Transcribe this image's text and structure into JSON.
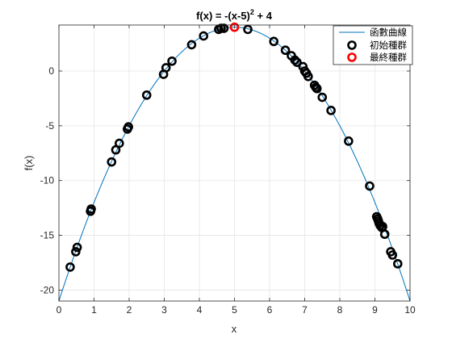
{
  "chart_data": {
    "type": "scatter",
    "title": "f(x) = -(x-5)",
    "title_superscript": "2",
    "title_suffix": " + 4",
    "xlabel": "x",
    "ylabel": "f(x)",
    "xlim": [
      0,
      10
    ],
    "ylim": [
      -21,
      4.2
    ],
    "xticks": [
      0,
      1,
      2,
      3,
      4,
      5,
      6,
      7,
      8,
      9,
      10
    ],
    "xtick_labels": [
      "0",
      "1",
      "2",
      "3",
      "4",
      "5",
      "6",
      "7",
      "8",
      "9",
      "10"
    ],
    "yticks": [
      -20,
      -15,
      -10,
      -5,
      0
    ],
    "ytick_labels": [
      "-20",
      "-15",
      "-10",
      "-5",
      "0"
    ],
    "grid": true,
    "legend_position": "top-right",
    "colors": {
      "curve": "#0072BD",
      "initial": "#000000",
      "final": "#FF0000",
      "grid": "#E5E5E5",
      "axes": "#262626"
    },
    "series": [
      {
        "name": "函數曲線",
        "kind": "line",
        "function": "-(x-5)^2+4",
        "x_range": [
          0,
          10
        ]
      },
      {
        "name": "初始種群",
        "kind": "marker",
        "x": [
          0.32,
          0.48,
          0.52,
          0.9,
          0.92,
          1.5,
          1.62,
          1.72,
          1.95,
          1.98,
          2.5,
          2.98,
          3.05,
          3.22,
          3.78,
          4.12,
          4.55,
          4.62,
          4.7,
          5.38,
          6.12,
          6.45,
          6.62,
          6.72,
          6.78,
          6.95,
          7.0,
          7.05,
          7.1,
          7.28,
          7.32,
          7.35,
          7.5,
          7.75,
          8.25,
          8.85,
          9.05,
          9.08,
          9.1,
          9.12,
          9.15,
          9.2,
          9.22,
          9.28,
          9.45,
          9.5,
          9.65
        ],
        "y": [
          -17.9,
          -16.5,
          -16.1,
          -12.8,
          -12.6,
          -8.3,
          -7.2,
          -6.6,
          -5.3,
          -5.1,
          -2.2,
          -0.3,
          0.3,
          0.9,
          2.4,
          3.2,
          3.8,
          3.9,
          3.9,
          3.8,
          2.7,
          1.9,
          1.4,
          1.0,
          0.8,
          0.4,
          0.0,
          -0.2,
          -0.5,
          -1.3,
          -1.5,
          -1.6,
          -2.4,
          -3.6,
          -6.4,
          -10.5,
          -13.3,
          -13.5,
          -13.7,
          -13.9,
          -14.1,
          -14.3,
          -14.2,
          -14.9,
          -16.5,
          -16.8,
          -17.6
        ]
      },
      {
        "name": "最終種群",
        "kind": "marker",
        "x": [
          5.0
        ],
        "y": [
          4.0
        ]
      }
    ]
  }
}
